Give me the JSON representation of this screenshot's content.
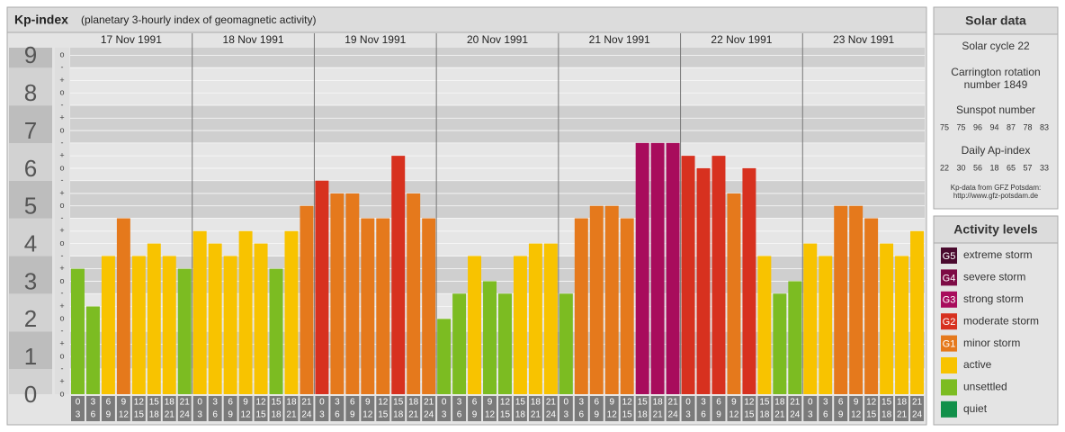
{
  "chart_data": {
    "type": "bar",
    "title": "Kp-index",
    "subtitle": "(planetary 3-hourly index of geomagnetic activity)",
    "days": [
      "17 Nov 1991",
      "18 Nov 1991",
      "19 Nov 1991",
      "20 Nov 1991",
      "21 Nov 1991",
      "22 Nov 1991",
      "23 Nov 1991"
    ],
    "hour_start": [
      0,
      3,
      6,
      9,
      12,
      15,
      18,
      21
    ],
    "hour_end": [
      3,
      6,
      9,
      12,
      15,
      18,
      21,
      24
    ],
    "values": [
      3.33,
      2.33,
      3.67,
      4.67,
      3.67,
      4,
      3.67,
      3.33,
      4.33,
      4,
      3.67,
      4.33,
      4,
      3.33,
      4.33,
      5,
      5.67,
      5.33,
      5.33,
      4.67,
      4.67,
      6.33,
      5.33,
      4.67,
      2,
      2.67,
      3.67,
      3,
      2.67,
      3.67,
      4,
      4,
      2.67,
      4.67,
      5,
      5,
      4.67,
      6.67,
      6.67,
      6.67,
      6.33,
      6,
      6.33,
      5.33,
      6,
      3.67,
      2.67,
      3,
      4,
      3.67,
      5,
      5,
      4.67,
      4,
      3.67,
      4.33
    ],
    "colors": [
      "#7cbc22",
      "#7cbc22",
      "#f8c300",
      "#e5791c",
      "#f8c300",
      "#f8c300",
      "#f8c300",
      "#7cbc22",
      "#f8c300",
      "#f8c300",
      "#f8c300",
      "#f8c300",
      "#f8c300",
      "#7cbc22",
      "#f8c300",
      "#e5791c",
      "#d7311f",
      "#e5791c",
      "#e5791c",
      "#e5791c",
      "#e5791c",
      "#d7311f",
      "#e5791c",
      "#e5791c",
      "#7cbc22",
      "#7cbc22",
      "#f8c300",
      "#7cbc22",
      "#7cbc22",
      "#f8c300",
      "#f8c300",
      "#f8c300",
      "#7cbc22",
      "#e5791c",
      "#e5791c",
      "#e5791c",
      "#e5791c",
      "#a80c5c",
      "#a80c5c",
      "#a80c5c",
      "#d7311f",
      "#d7311f",
      "#d7311f",
      "#e5791c",
      "#d7311f",
      "#f8c300",
      "#7cbc22",
      "#7cbc22",
      "#f8c300",
      "#f8c300",
      "#e5791c",
      "#e5791c",
      "#e5791c",
      "#f8c300",
      "#f8c300",
      "#f8c300"
    ],
    "ylim": [
      0,
      9.2
    ],
    "yticks": [
      0,
      1,
      2,
      3,
      4,
      5,
      6,
      7,
      8,
      9
    ],
    "minor_yticks": [
      {
        "value": 0,
        "label": "o"
      },
      {
        "value": 0.33,
        "label": "+"
      },
      {
        "value": 0.67,
        "label": "-"
      },
      {
        "value": 1,
        "label": "o"
      },
      {
        "value": 1.33,
        "label": "+"
      },
      {
        "value": 1.67,
        "label": "-"
      },
      {
        "value": 2,
        "label": "o"
      },
      {
        "value": 2.33,
        "label": "+"
      },
      {
        "value": 2.67,
        "label": "-"
      },
      {
        "value": 3,
        "label": "o"
      },
      {
        "value": 3.33,
        "label": "+"
      },
      {
        "value": 3.67,
        "label": "-"
      },
      {
        "value": 4,
        "label": "o"
      },
      {
        "value": 4.33,
        "label": "+"
      },
      {
        "value": 4.67,
        "label": "-"
      },
      {
        "value": 5,
        "label": "o"
      },
      {
        "value": 5.33,
        "label": "+"
      },
      {
        "value": 5.67,
        "label": "-"
      },
      {
        "value": 6,
        "label": "o"
      },
      {
        "value": 6.33,
        "label": "+"
      },
      {
        "value": 6.67,
        "label": "-"
      },
      {
        "value": 7,
        "label": "o"
      },
      {
        "value": 7.33,
        "label": "+"
      },
      {
        "value": 7.67,
        "label": "-"
      },
      {
        "value": 8,
        "label": "o"
      },
      {
        "value": 8.33,
        "label": "+"
      },
      {
        "value": 8.67,
        "label": "-"
      },
      {
        "value": 9,
        "label": "o"
      }
    ],
    "grid": true,
    "solar_data": {
      "title": "Solar data",
      "cycle": "Solar cycle 22",
      "carrington": [
        "Carrington rotation",
        "number 1849"
      ],
      "sunspot_title": "Sunspot number",
      "sunspot": [
        75,
        75,
        96,
        94,
        87,
        78,
        83
      ],
      "ap_title": "Daily Ap-index",
      "ap": [
        22,
        30,
        56,
        18,
        65,
        57,
        33
      ],
      "source": [
        "Kp-data from GFZ Potsdam:",
        "http://www.gfz-potsdam.de"
      ]
    },
    "legend_title": "Activity levels",
    "legend": [
      {
        "code": "G5",
        "label": "extreme storm",
        "color": "#4a0a2e"
      },
      {
        "code": "G4",
        "label": "severe storm",
        "color": "#7d0b45"
      },
      {
        "code": "G3",
        "label": "strong storm",
        "color": "#a80c5c"
      },
      {
        "code": "G2",
        "label": "moderate storm",
        "color": "#d7311f"
      },
      {
        "code": "G1",
        "label": "minor storm",
        "color": "#e5791c"
      },
      {
        "label": "active",
        "color": "#f8c300"
      },
      {
        "label": "unsettled",
        "color": "#7cbc22"
      },
      {
        "label": "quiet",
        "color": "#11904a"
      }
    ]
  }
}
